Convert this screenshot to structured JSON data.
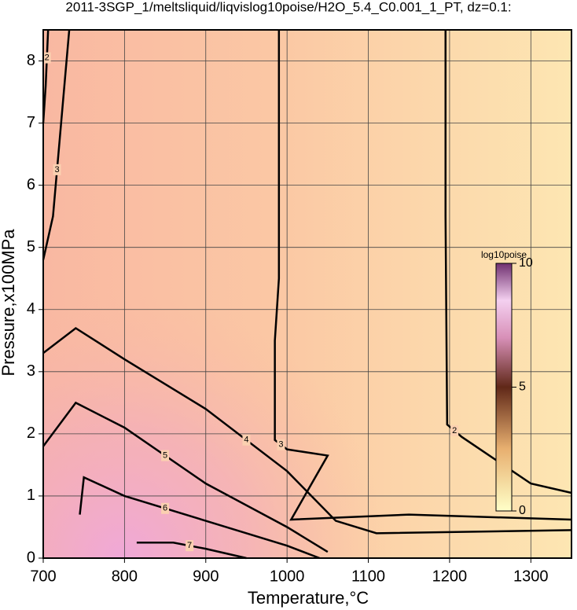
{
  "chart_data": {
    "type": "contour",
    "title": "2011-3SGP_1/meltsliquid/liqvislog10poise/H2O_5.4_C0.001_1_PT, dz=0.1:",
    "x_label": "Temperature,°C",
    "y_label": "Pressure,x100MPa",
    "xlim": [
      700,
      1350
    ],
    "ylim": [
      0,
      8.5
    ],
    "xticks": [
      700,
      800,
      900,
      1000,
      1100,
      1200,
      1300
    ],
    "yticks": [
      0,
      1,
      2,
      3,
      4,
      5,
      6,
      7,
      8
    ],
    "grid": true,
    "colorbar": {
      "label": "log10poise",
      "lim": [
        0,
        10
      ],
      "ticks": [
        0,
        5,
        10
      ]
    },
    "contours": [
      {
        "level": 2,
        "x": [
          1195,
          1195,
          1197,
          1215,
          1300,
          1350
        ],
        "y": [
          8.5,
          5.5,
          2.15,
          1.95,
          1.2,
          1.05
        ]
      },
      {
        "level": 2,
        "x": [
          706,
          703,
          700
        ],
        "y": [
          8.5,
          7.6,
          7.0
        ]
      },
      {
        "level": 3,
        "x": [
          990,
          990,
          985,
          985,
          1000,
          1050,
          1005,
          1150,
          1350
        ],
        "y": [
          8.5,
          4.5,
          3.5,
          1.9,
          1.75,
          1.65,
          0.62,
          0.7,
          0.62
        ]
      },
      {
        "level": 3,
        "x": [
          732,
          722,
          712,
          700
        ],
        "y": [
          8.5,
          7.0,
          5.5,
          4.8
        ]
      },
      {
        "level": 4,
        "x": [
          700,
          740,
          800,
          900,
          1000,
          1060,
          1110,
          1350
        ],
        "y": [
          3.3,
          3.7,
          3.2,
          2.4,
          1.4,
          0.6,
          0.4,
          0.45
        ]
      },
      {
        "level": 5,
        "x": [
          700,
          740,
          800,
          900,
          1000,
          1050
        ],
        "y": [
          1.8,
          2.5,
          2.1,
          1.2,
          0.5,
          0.1
        ]
      },
      {
        "level": 6,
        "x": [
          745,
          750,
          800,
          900,
          1000,
          1040
        ],
        "y": [
          0.7,
          1.3,
          1.0,
          0.6,
          0.2,
          0.0
        ]
      },
      {
        "level": 7,
        "x": [
          815,
          860,
          900,
          950
        ],
        "y": [
          0.25,
          0.25,
          0.15,
          0.0
        ]
      }
    ]
  }
}
